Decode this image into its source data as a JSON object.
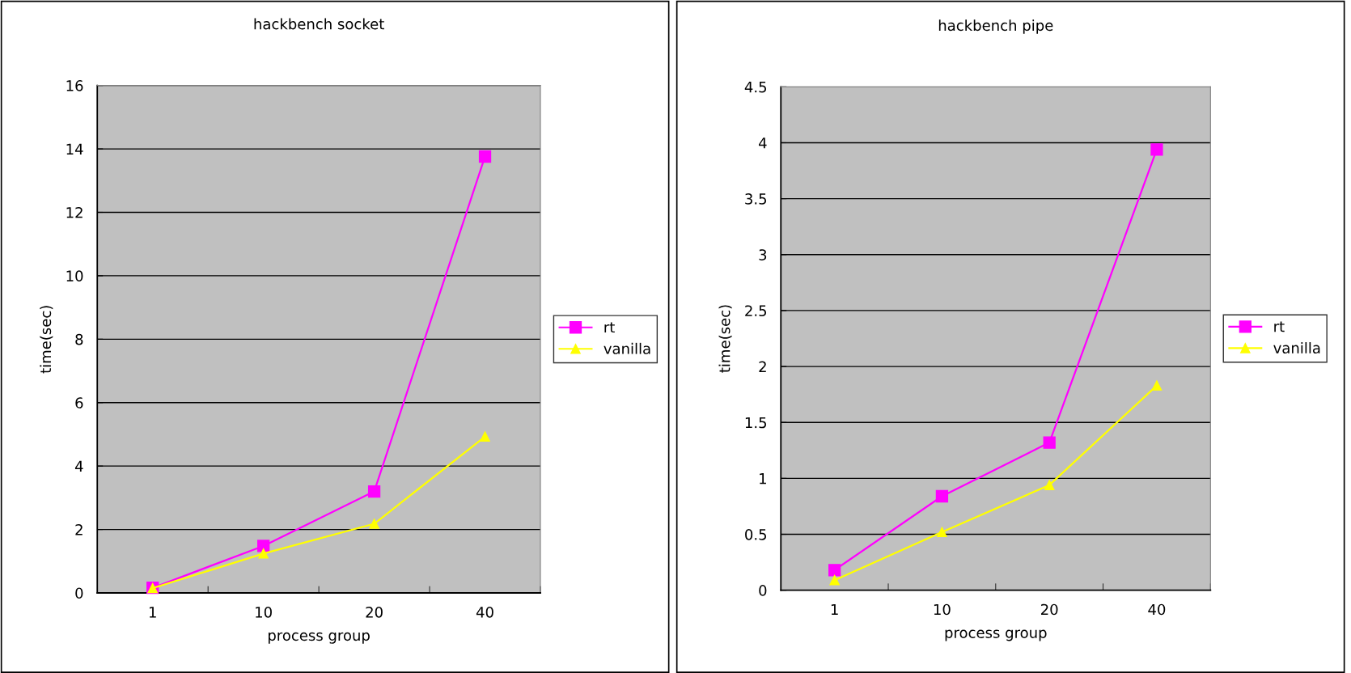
{
  "chart_data": [
    {
      "type": "line",
      "title": "hackbench socket",
      "xlabel": "process group",
      "ylabel": "time(sec)",
      "categories": [
        "1",
        "10",
        "20",
        "40"
      ],
      "series": [
        {
          "name": "rt",
          "color": "#ff00ff",
          "marker": "square",
          "values": [
            0.16,
            1.48,
            3.2,
            13.76
          ]
        },
        {
          "name": "vanilla",
          "color": "#ffff00",
          "marker": "triangle",
          "values": [
            0.15,
            1.24,
            2.18,
            4.93
          ]
        }
      ],
      "ylim": [
        0,
        16
      ],
      "yticks": [
        0,
        2,
        4,
        6,
        8,
        10,
        12,
        14,
        16
      ],
      "grid": "y",
      "legend": "right"
    },
    {
      "type": "line",
      "title": "hackbench pipe",
      "xlabel": "process group",
      "ylabel": "time(sec)",
      "categories": [
        "1",
        "10",
        "20",
        "40"
      ],
      "series": [
        {
          "name": "rt",
          "color": "#ff00ff",
          "marker": "square",
          "values": [
            0.18,
            0.84,
            1.32,
            3.94
          ]
        },
        {
          "name": "vanilla",
          "color": "#ffff00",
          "marker": "triangle",
          "values": [
            0.09,
            0.52,
            0.94,
            1.83
          ]
        }
      ],
      "ylim": [
        0,
        4.5
      ],
      "yticks": [
        0,
        0.5,
        1,
        1.5,
        2,
        2.5,
        3,
        3.5,
        4,
        4.5
      ],
      "grid": "y",
      "legend": "right"
    }
  ]
}
